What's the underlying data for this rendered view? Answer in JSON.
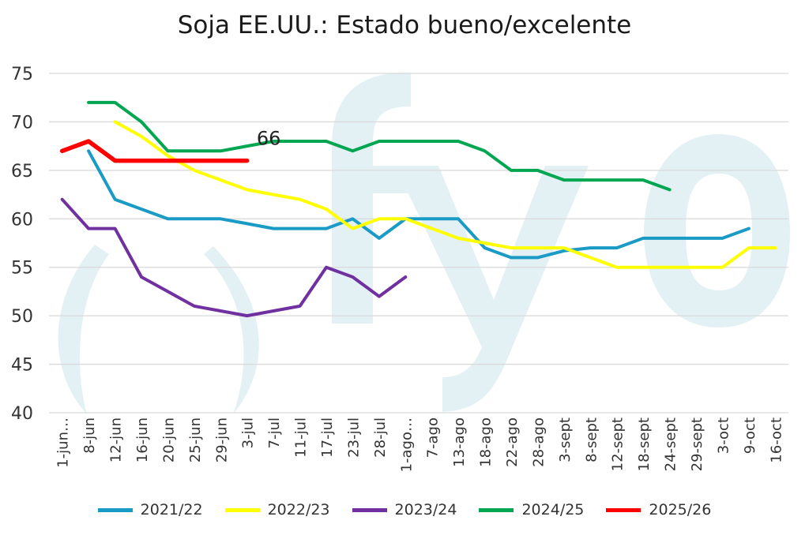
{
  "chart_data": {
    "type": "line",
    "title": "Soja EE.UU.: Estado bueno/excelente",
    "ylim": [
      40,
      75
    ],
    "yticks": [
      40,
      45,
      50,
      55,
      60,
      65,
      70,
      75
    ],
    "categories": [
      "1-jun…",
      "8-jun",
      "12-jun",
      "16-jun",
      "20-jun",
      "25-jun",
      "29-jun",
      "3-jul",
      "7-jul",
      "11-jul",
      "17-jul",
      "23-jul",
      "28-jul",
      "1-ago…",
      "7-ago",
      "13-ago",
      "18-ago",
      "22-ago",
      "28-ago",
      "3-sept",
      "8-sept",
      "12-sept",
      "18-sept",
      "24-sept",
      "29-sept",
      "3-oct",
      "9-oct",
      "16-oct"
    ],
    "grid": true,
    "legend_position": "bottom",
    "annotations": [
      {
        "text": "66",
        "x": "7-jul",
        "y": 66
      }
    ],
    "watermark": "( fyo",
    "series": [
      {
        "name": "2021/22",
        "color": "#1a9bc5",
        "values": [
          null,
          67,
          62,
          61,
          60,
          60,
          60,
          59.5,
          59,
          59,
          59,
          60,
          58,
          60,
          60,
          60,
          57,
          56,
          56,
          56.7,
          57,
          57,
          58,
          58,
          58,
          58,
          59,
          null
        ]
      },
      {
        "name": "2022/23",
        "color": "#ffff00",
        "values": [
          null,
          null,
          70,
          68.5,
          66.5,
          65,
          64,
          63,
          62.5,
          62,
          61,
          59,
          60,
          60,
          59,
          58,
          57.5,
          57,
          57,
          57,
          56,
          55,
          55,
          55,
          55,
          55,
          57,
          57
        ]
      },
      {
        "name": "2023/24",
        "color": "#7030a0",
        "values": [
          62,
          59,
          59,
          54,
          52.5,
          51,
          50.5,
          50,
          50.5,
          51,
          55,
          54,
          52,
          54,
          null,
          null,
          null,
          null,
          null,
          null,
          null,
          null,
          null,
          null,
          null,
          null,
          null,
          null
        ]
      },
      {
        "name": "2024/25",
        "color": "#00a650",
        "values": [
          null,
          72,
          72,
          70,
          67,
          67,
          67,
          67.5,
          68,
          68,
          68,
          67,
          68,
          68,
          68,
          68,
          67,
          65,
          65,
          64,
          64,
          64,
          64,
          63,
          null,
          null,
          null,
          null
        ]
      },
      {
        "name": "2025/26",
        "color": "#ff0000",
        "values": [
          67,
          68,
          66,
          66,
          66,
          66,
          66,
          66,
          null,
          null,
          null,
          null,
          null,
          null,
          null,
          null,
          null,
          null,
          null,
          null,
          null,
          null,
          null,
          null,
          null,
          null,
          null,
          null
        ]
      }
    ]
  }
}
